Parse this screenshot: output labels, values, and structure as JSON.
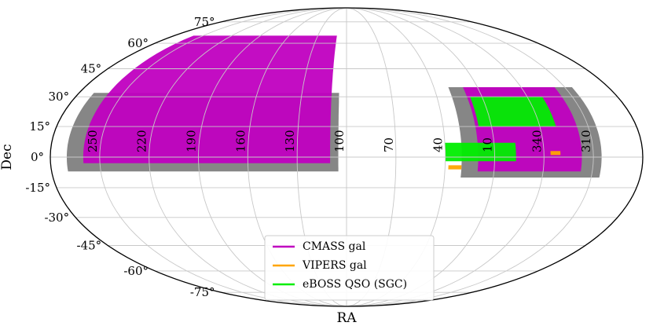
{
  "chart_data": {
    "type": "scatter",
    "projection": "mollweide",
    "xlabel": "RA",
    "ylabel": "Dec",
    "ra_ticks": [
      "250",
      "220",
      "190",
      "160",
      "130",
      "100",
      "70",
      "40",
      "10",
      "340",
      "310"
    ],
    "dec_ticks": [
      "75°",
      "60°",
      "45°",
      "30°",
      "15°",
      "0°",
      "-15°",
      "-30°",
      "-45°",
      "-60°",
      "-75°"
    ],
    "grid": true,
    "legend_position": "bottom-center",
    "colors": {
      "footprint": "#808080",
      "cmass": "#c000c0",
      "vipers": "#ffa500",
      "eboss": "#00ee00",
      "grid": "#c8c8c8"
    },
    "series": [
      {
        "name": "CMASS gal",
        "color": "#c000c0"
      },
      {
        "name": "VIPERS gal",
        "color": "#ffa500"
      },
      {
        "name": "eBOSS QSO (SGC)",
        "color": "#00ee00"
      }
    ]
  }
}
